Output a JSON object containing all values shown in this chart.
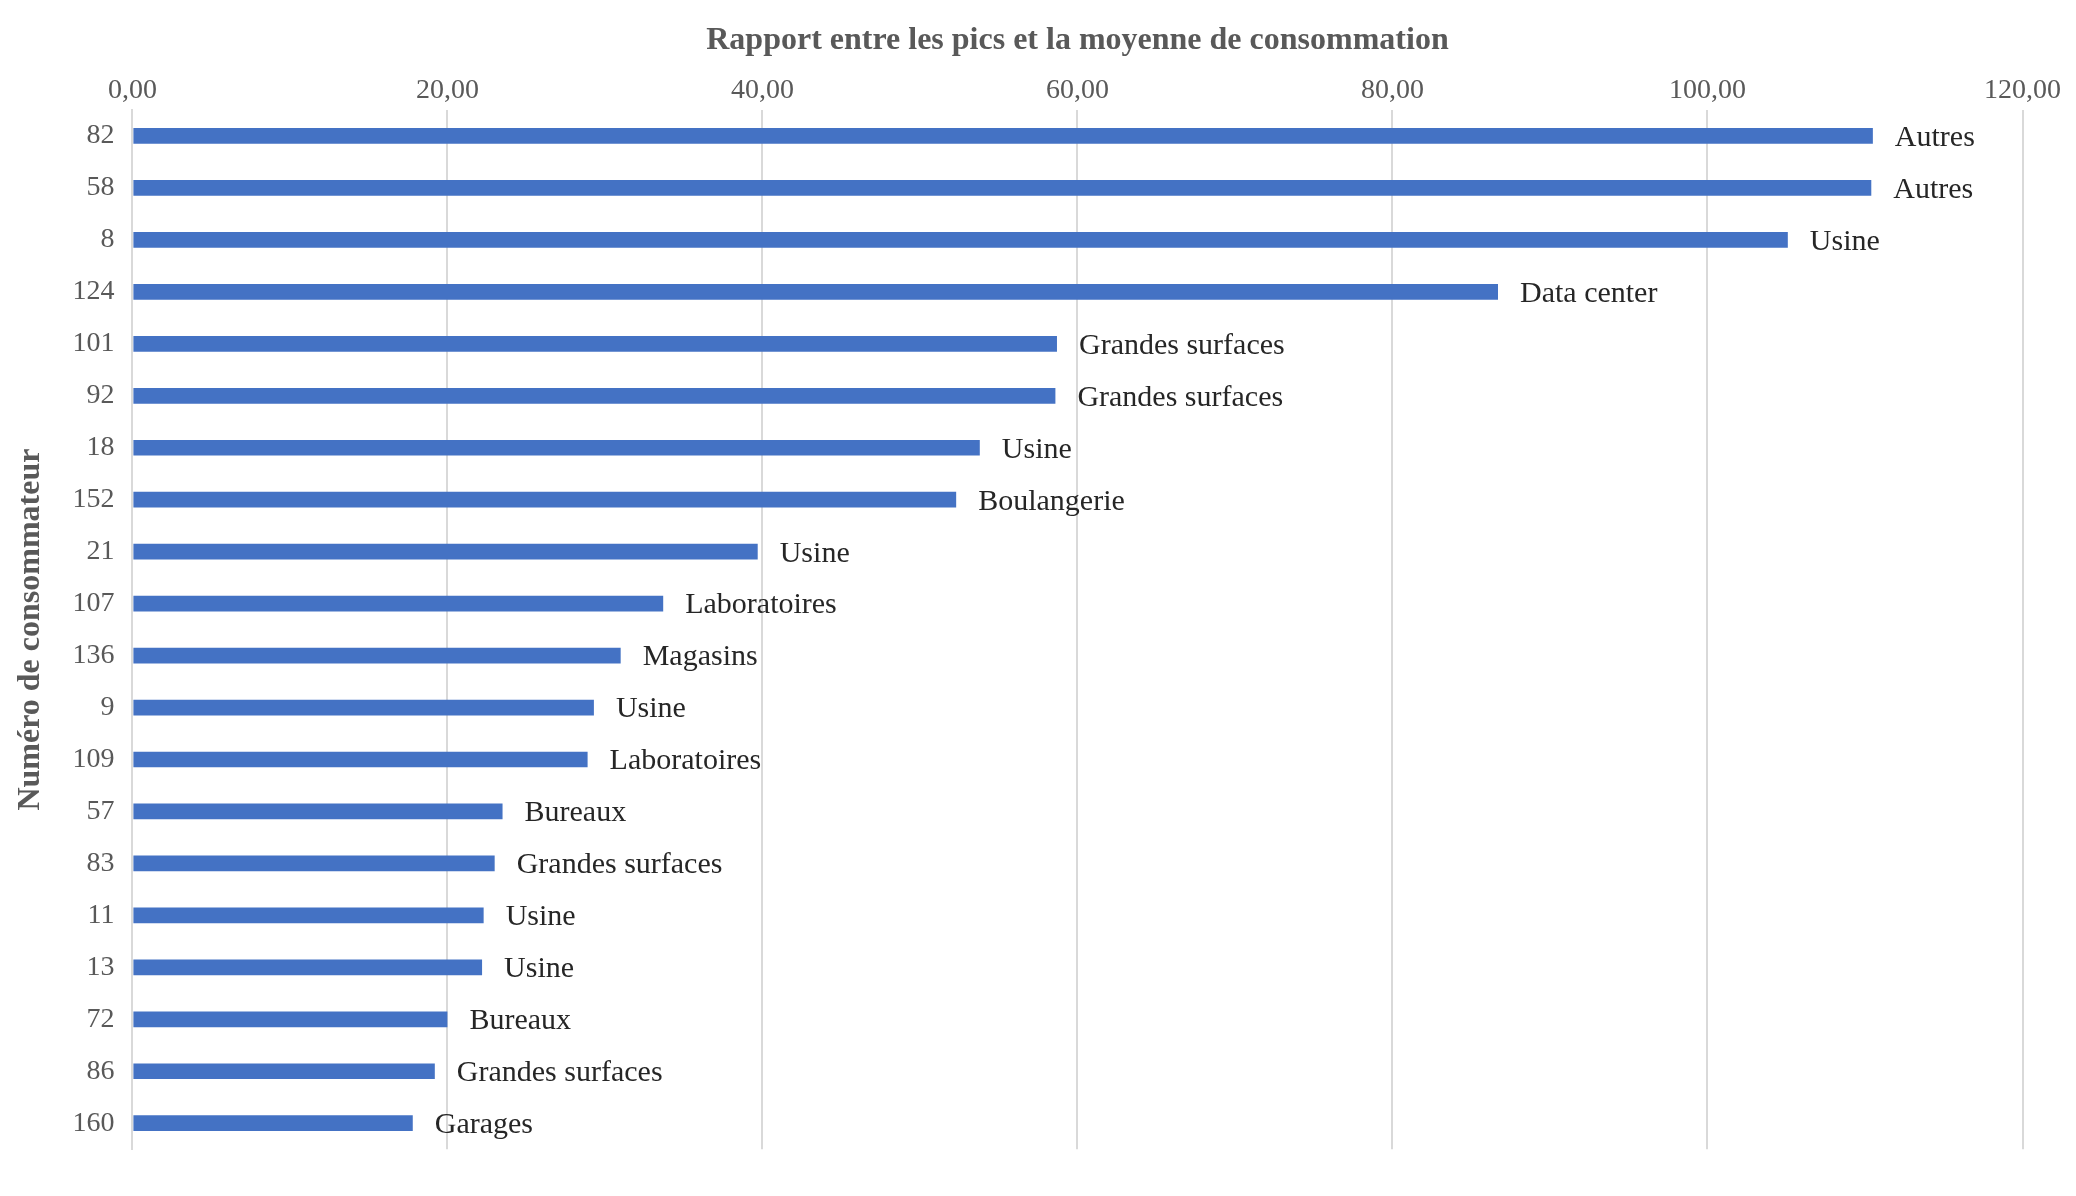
{
  "chart_data": {
    "type": "bar",
    "orientation": "horizontal",
    "xlabel": "Rapport entre les pics et la moyenne de consommation",
    "ylabel": "Numéro de consommateur",
    "categories": [
      "82",
      "58",
      "8",
      "124",
      "101",
      "92",
      "18",
      "152",
      "21",
      "107",
      "136",
      "9",
      "109",
      "57",
      "83",
      "11",
      "13",
      "72",
      "86",
      "160"
    ],
    "values": [
      110.5,
      110.4,
      105.1,
      86.7,
      58.7,
      58.6,
      53.8,
      52.3,
      39.7,
      33.7,
      31.0,
      29.3,
      28.9,
      23.5,
      23.0,
      22.3,
      22.2,
      20.0,
      19.2,
      17.8
    ],
    "color": "#4472c4",
    "xlim": [
      0,
      120
    ],
    "xticks": [
      {
        "value": 0,
        "label": "0,00"
      },
      {
        "value": 20,
        "label": "20,00"
      },
      {
        "value": 40,
        "label": "40,00"
      },
      {
        "value": 60,
        "label": "60,00"
      },
      {
        "value": 80,
        "label": "80,00"
      },
      {
        "value": 100,
        "label": "100,00"
      },
      {
        "value": 120,
        "label": "120,00"
      }
    ],
    "grid": "x",
    "legend": false,
    "annotations": [
      {
        "text": "Autres",
        "x": 110.5,
        "y": "82"
      },
      {
        "text": "Autres",
        "x": 110.4,
        "y": "58"
      },
      {
        "text": "Usine",
        "x": 105.1,
        "y": "8"
      },
      {
        "text": "Data center",
        "x": 86.7,
        "y": "124"
      },
      {
        "text": "Grandes surfaces",
        "x": 58.7,
        "y": "101"
      },
      {
        "text": "Grandes surfaces",
        "x": 58.6,
        "y": "92"
      },
      {
        "text": "Usine",
        "x": 53.8,
        "y": "18"
      },
      {
        "text": "Boulangerie",
        "x": 52.3,
        "y": "152"
      },
      {
        "text": "Usine",
        "x": 39.7,
        "y": "21"
      },
      {
        "text": "Laboratoires",
        "x": 33.7,
        "y": "107"
      },
      {
        "text": "Magasins",
        "x": 31.0,
        "y": "136"
      },
      {
        "text": "Usine",
        "x": 29.3,
        "y": "9"
      },
      {
        "text": "Laboratoires",
        "x": 28.9,
        "y": "109"
      },
      {
        "text": "Bureaux",
        "x": 23.5,
        "y": "57"
      },
      {
        "text": "Grandes surfaces",
        "x": 23.0,
        "y": "83"
      },
      {
        "text": "Usine",
        "x": 22.3,
        "y": "11"
      },
      {
        "text": "Usine",
        "x": 22.2,
        "y": "13"
      },
      {
        "text": "Bureaux",
        "x": 20.0,
        "y": "72"
      },
      {
        "text": "Grandes surfaces",
        "x": 19.2,
        "y": "86"
      },
      {
        "text": "Garages",
        "x": 17.8,
        "y": "160"
      }
    ]
  }
}
